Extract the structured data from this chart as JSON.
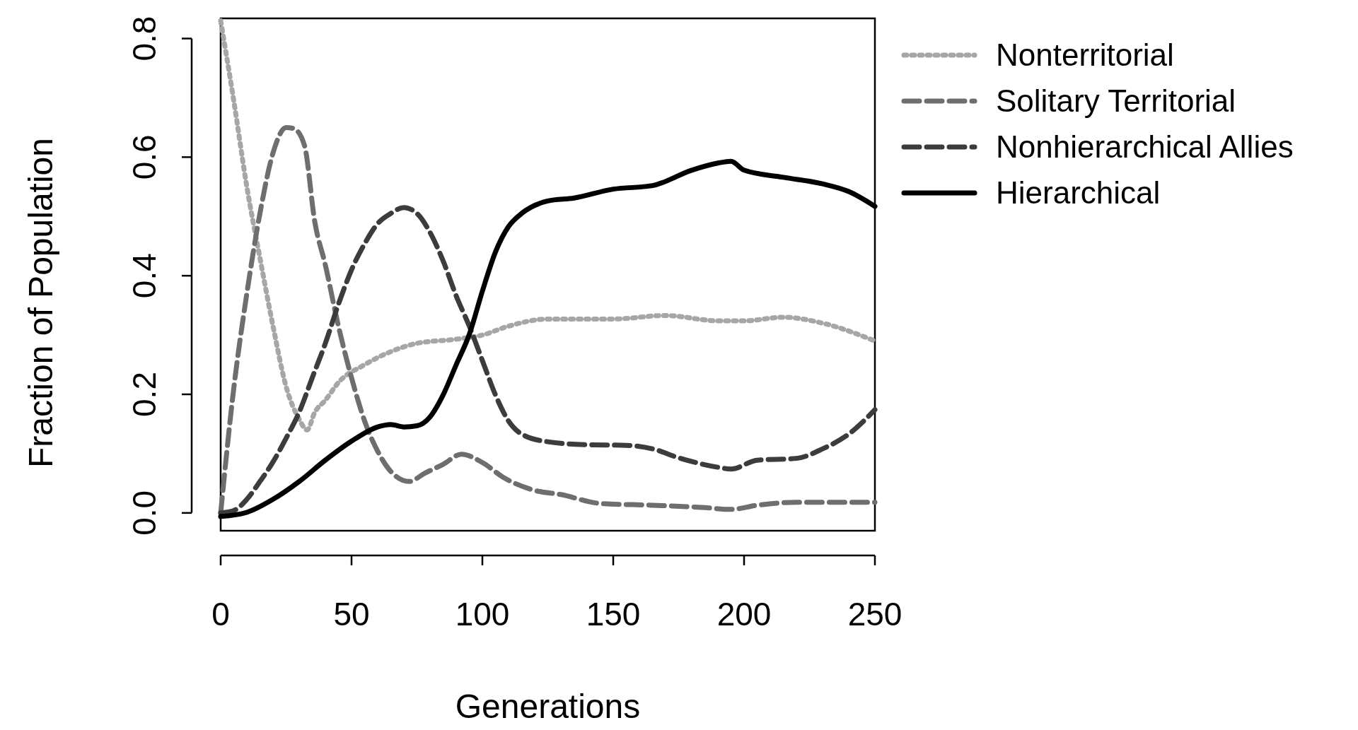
{
  "chart_data": {
    "type": "line",
    "xlabel": "Generations",
    "ylabel": "Fraction of Population",
    "xlim": [
      0,
      250
    ],
    "ylim": [
      -0.03,
      0.834
    ],
    "xticks": [
      0,
      50,
      100,
      150,
      200,
      250
    ],
    "yticks": [
      {
        "value": 0,
        "label": "0.0"
      },
      0.2,
      0.4,
      0.6,
      0.8
    ],
    "grid": false,
    "legend": "top right",
    "marker": "none",
    "series": [
      {
        "name": "Nonterritorial",
        "color": "#a6a6a6",
        "line_style": "dotted",
        "x": [
          0,
          5,
          10,
          15,
          20,
          25,
          30,
          33,
          36,
          40,
          45,
          55,
          65,
          75,
          90,
          100,
          110,
          125,
          150,
          170,
          190,
          200,
          215,
          230,
          250
        ],
        "values": [
          0.83,
          0.695,
          0.55,
          0.43,
          0.315,
          0.213,
          0.158,
          0.14,
          0.17,
          0.19,
          0.22,
          0.25,
          0.272,
          0.286,
          0.293,
          0.3,
          0.315,
          0.327,
          0.327,
          0.333,
          0.324,
          0.324,
          0.33,
          0.32,
          0.29
        ]
      },
      {
        "name": "Solitary Territorial",
        "color": "#6e6e6e",
        "line_style": "dashed",
        "x": [
          0,
          5,
          10,
          15,
          20,
          25,
          28,
          32,
          36,
          40,
          45,
          50,
          55,
          60,
          65,
          72,
          78,
          85,
          92,
          100,
          108,
          120,
          130,
          145,
          165,
          185,
          195,
          205,
          220,
          250
        ],
        "values": [
          0,
          0.21,
          0.37,
          0.505,
          0.607,
          0.65,
          0.648,
          0.62,
          0.49,
          0.418,
          0.315,
          0.228,
          0.155,
          0.104,
          0.07,
          0.053,
          0.067,
          0.082,
          0.099,
          0.085,
          0.06,
          0.038,
          0.031,
          0.016,
          0.013,
          0.009,
          0.006,
          0.013,
          0.018,
          0.018
        ]
      },
      {
        "name": "Nonhierarchical Allies",
        "color": "#3c3c3c",
        "line_style": "dashed",
        "x": [
          0,
          5,
          10,
          15,
          20,
          25,
          30,
          35,
          40,
          45,
          50,
          55,
          60,
          65,
          70,
          75,
          80,
          85,
          90,
          95,
          100,
          105,
          110,
          115,
          125,
          140,
          155,
          165,
          175,
          190,
          195,
          205,
          220,
          230,
          240,
          250
        ],
        "values": [
          0,
          0.004,
          0.023,
          0.053,
          0.086,
          0.126,
          0.17,
          0.228,
          0.286,
          0.352,
          0.41,
          0.454,
          0.488,
          0.505,
          0.515,
          0.505,
          0.473,
          0.425,
          0.366,
          0.315,
          0.257,
          0.199,
          0.155,
          0.133,
          0.12,
          0.115,
          0.114,
          0.108,
          0.093,
          0.077,
          0.074,
          0.089,
          0.092,
          0.108,
          0.133,
          0.174
        ]
      },
      {
        "name": "Hierarchical",
        "color": "#000000",
        "line_style": "solid",
        "x": [
          0,
          10,
          20,
          30,
          40,
          50,
          60,
          65,
          70,
          75,
          80,
          85,
          90,
          95,
          100,
          105,
          110,
          115,
          125,
          135,
          150,
          165,
          180,
          190,
          195,
          200,
          215,
          230,
          240,
          250
        ],
        "values": [
          -0.006,
          0.001,
          0.023,
          0.053,
          0.089,
          0.121,
          0.145,
          0.149,
          0.145,
          0.147,
          0.162,
          0.199,
          0.25,
          0.301,
          0.374,
          0.44,
          0.483,
          0.505,
          0.526,
          0.531,
          0.546,
          0.552,
          0.578,
          0.59,
          0.593,
          0.578,
          0.566,
          0.555,
          0.542,
          0.517
        ]
      }
    ]
  }
}
